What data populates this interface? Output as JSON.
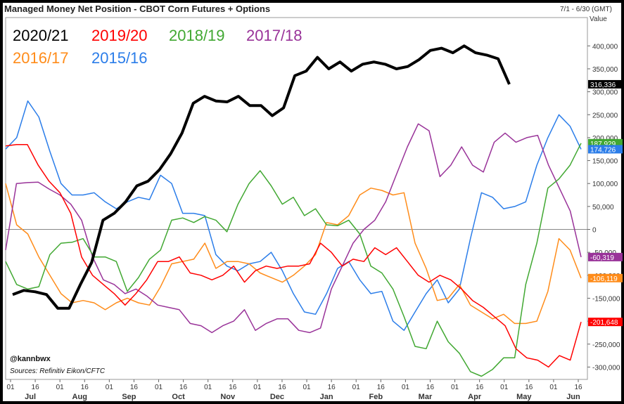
{
  "header": {
    "title": "Managed Money Net Position - CBOT Corn Futures + Options",
    "date_range": "7/1 - 6/30 (GMT)",
    "value_axis_label": "Value"
  },
  "footer": {
    "handle": "@kannbwx",
    "sources": "Sources: Refinitiv Eikon/CFTC"
  },
  "chart_data": {
    "type": "line",
    "title": "Managed Money Net Position - CBOT Corn Futures + Options",
    "ylim": [
      -320000,
      450000
    ],
    "y_ticks": [
      -300000,
      -250000,
      -200000,
      -150000,
      -100000,
      -50000,
      0,
      50000,
      100000,
      150000,
      200000,
      250000,
      300000,
      350000,
      400000
    ],
    "y_tick_labels": [
      "-300,000",
      "-250,000",
      "-200,000",
      "-150,000",
      "-100,000",
      "-50,000",
      "0",
      "50,000",
      "100,000",
      "150,000",
      "200,000",
      "250,000",
      "300,000",
      "350,000",
      "400,000"
    ],
    "x_day_labels": [
      "01",
      "16",
      "01",
      "16",
      "01",
      "16",
      "01",
      "16",
      "01",
      "16",
      "01",
      "16",
      "01",
      "16",
      "01",
      "16",
      "01",
      "16",
      "01",
      "16",
      "01",
      "16",
      "01",
      "16"
    ],
    "months": [
      "Jul",
      "Aug",
      "Sep",
      "Oct",
      "Nov",
      "Dec",
      "Jan",
      "Feb",
      "Mar",
      "Apr",
      "May",
      "Jun"
    ],
    "grid": false,
    "legend": "top-left",
    "series": [
      {
        "name": "2020/21",
        "color": "#000000",
        "width": 4,
        "end_label": "316,336",
        "values": [
          -142000,
          -133000,
          -136000,
          -142000,
          -172000,
          -172000,
          -120000,
          -72000,
          20000,
          35000,
          60000,
          95000,
          105000,
          130000,
          165000,
          210000,
          275000,
          290000,
          280000,
          278000,
          290000,
          270000,
          270000,
          248000,
          265000,
          335000,
          345000,
          375000,
          350000,
          365000,
          345000,
          360000,
          365000,
          360000,
          350000,
          355000,
          370000,
          390000,
          395000,
          385000,
          400000,
          385000,
          380000,
          372000,
          316336
        ]
      },
      {
        "name": "2019/20",
        "color": "#ff0000",
        "width": 1.5,
        "end_label": "-201,648",
        "values": [
          182000,
          185000,
          185000,
          140000,
          105000,
          80000,
          35000,
          -60000,
          -100000,
          -120000,
          -140000,
          -165000,
          -140000,
          -110000,
          -70000,
          -70000,
          -60000,
          -95000,
          -100000,
          -110000,
          -100000,
          -80000,
          -115000,
          -90000,
          -80000,
          -85000,
          -80000,
          -80000,
          -75000,
          -30000,
          -50000,
          -80000,
          -65000,
          -70000,
          -40000,
          -55000,
          -40000,
          -70000,
          -100000,
          -115000,
          -100000,
          -110000,
          -130000,
          -155000,
          -170000,
          -190000,
          -210000,
          -260000,
          -280000,
          -285000,
          -300000,
          -275000,
          -285000,
          -201648
        ]
      },
      {
        "name": "2018/19",
        "color": "#41a832",
        "width": 1.5,
        "end_label": "187,929",
        "values": [
          -70000,
          -120000,
          -130000,
          -125000,
          -55000,
          -30000,
          -28000,
          -20000,
          -60000,
          -60000,
          -70000,
          -135000,
          -105000,
          -65000,
          -45000,
          20000,
          25000,
          15000,
          28000,
          20000,
          -5000,
          55000,
          100000,
          128000,
          95000,
          55000,
          70000,
          30000,
          45000,
          10000,
          8000,
          20000,
          -10000,
          -80000,
          -95000,
          -130000,
          -190000,
          -255000,
          -260000,
          -200000,
          -245000,
          -270000,
          -310000,
          -320000,
          -305000,
          -280000,
          -280000,
          -120000,
          -30000,
          90000,
          110000,
          140000,
          187929
        ]
      },
      {
        "name": "2017/18",
        "color": "#993399",
        "width": 1.5,
        "end_label": "-60,319",
        "values": [
          -45000,
          100000,
          102000,
          103000,
          88000,
          75000,
          55000,
          20000,
          -60000,
          -110000,
          -120000,
          -140000,
          -130000,
          -145000,
          -165000,
          -170000,
          -175000,
          -205000,
          -210000,
          -225000,
          -210000,
          -200000,
          -175000,
          -220000,
          -205000,
          -195000,
          -195000,
          -220000,
          -225000,
          -215000,
          -130000,
          -80000,
          -30000,
          0,
          20000,
          60000,
          120000,
          180000,
          230000,
          215000,
          115000,
          140000,
          180000,
          140000,
          125000,
          190000,
          210000,
          190000,
          200000,
          205000,
          140000,
          90000,
          40000,
          -60319
        ]
      },
      {
        "name": "2016/17",
        "color": "#ff8c1a",
        "width": 1.5,
        "end_label": "-106,119",
        "values": [
          100000,
          10000,
          -10000,
          -60000,
          -100000,
          -140000,
          -160000,
          -155000,
          -160000,
          -175000,
          -160000,
          -150000,
          -160000,
          -165000,
          -125000,
          -75000,
          -70000,
          -65000,
          -30000,
          -85000,
          -70000,
          -70000,
          -75000,
          -95000,
          -105000,
          -115000,
          -100000,
          -80000,
          -55000,
          15000,
          10000,
          30000,
          75000,
          90000,
          85000,
          75000,
          80000,
          -30000,
          -85000,
          -155000,
          -150000,
          -120000,
          -165000,
          -180000,
          -195000,
          -185000,
          -205000,
          -205000,
          -200000,
          -135000,
          -20000,
          -45000,
          -106119
        ]
      },
      {
        "name": "2015/16",
        "color": "#2b7de9",
        "width": 1.5,
        "end_label": "174,726",
        "values": [
          175000,
          200000,
          280000,
          245000,
          170000,
          100000,
          75000,
          75000,
          80000,
          60000,
          45000,
          60000,
          70000,
          65000,
          118000,
          100000,
          35000,
          35000,
          30000,
          -55000,
          -80000,
          -90000,
          -75000,
          -70000,
          -50000,
          -90000,
          -140000,
          -180000,
          -185000,
          -140000,
          -85000,
          -70000,
          -110000,
          -140000,
          -135000,
          -200000,
          -220000,
          -180000,
          -140000,
          -110000,
          -160000,
          -130000,
          -20000,
          80000,
          70000,
          45000,
          50000,
          60000,
          140000,
          200000,
          250000,
          225000,
          174726
        ]
      }
    ]
  }
}
